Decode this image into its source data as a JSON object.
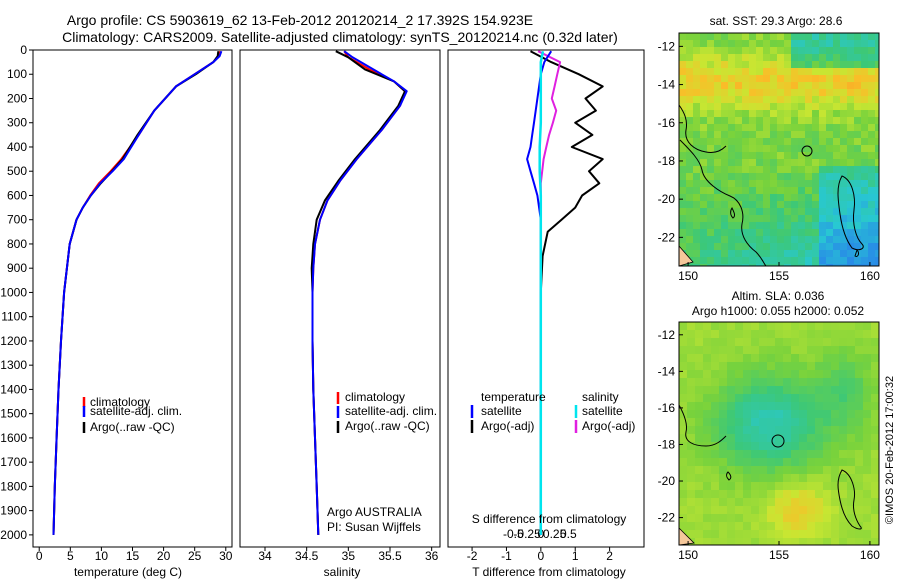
{
  "title_line1": "Argo profile: CS 5903619_62 13-Feb-2012 20120214_2 17.392S 154.923E",
  "title_line2": "Climatology: CARS2009. Satellite-adjusted climatology: synTS_20120214.nc (0.32d later)",
  "colors": {
    "climatology": "#ff0000",
    "satellite": "#0000ff",
    "argo": "#000000",
    "sal_satellite": "#00e5ee",
    "sal_argo": "#e020e0"
  },
  "chart_data": [
    {
      "type": "line",
      "name": "temperature",
      "xlabel": "temperature (deg C)",
      "ylabel": "",
      "xlim": [
        -1,
        31
      ],
      "ylim": [
        2050,
        0
      ],
      "xticks": [
        "0",
        "5",
        "10",
        "15",
        "20",
        "25",
        "30"
      ],
      "xtick_values": [
        0,
        5,
        10,
        15,
        20,
        25,
        30
      ],
      "yticks": [
        "0",
        "100",
        "200",
        "300",
        "400",
        "500",
        "600",
        "700",
        "800",
        "900",
        "1000",
        "1100",
        "1200",
        "1300",
        "1400",
        "1500",
        "1600",
        "1700",
        "1800",
        "1900",
        "2000"
      ],
      "ytick_values": [
        0,
        100,
        200,
        300,
        400,
        500,
        600,
        700,
        800,
        900,
        1000,
        1100,
        1200,
        1300,
        1400,
        1500,
        1600,
        1700,
        1800,
        1900,
        2000
      ],
      "legend": [
        "climatology",
        "satellite-adj. clim.",
        "Argo(..raw -QC)"
      ],
      "series": [
        {
          "name": "climatology",
          "x": [
            29.0,
            28.9,
            28.0,
            25.0,
            22.0,
            18.5,
            16.0,
            13.2,
            11.5,
            9.6,
            8.2,
            7.0,
            6.0,
            4.9,
            4.0,
            3.5,
            3.1,
            2.8,
            2.5,
            2.3
          ],
          "y": [
            5,
            25,
            50,
            100,
            150,
            250,
            350,
            450,
            500,
            550,
            600,
            650,
            700,
            800,
            1000,
            1200,
            1400,
            1600,
            1800,
            2000
          ]
        },
        {
          "name": "satellite",
          "x": [
            29.3,
            29.0,
            28.0,
            25.0,
            22.0,
            18.5,
            16.0,
            13.6,
            11.8,
            9.8,
            8.3,
            7.0,
            6.0,
            4.9,
            4.0,
            3.5,
            3.1,
            2.8,
            2.5,
            2.3
          ],
          "y": [
            5,
            25,
            50,
            100,
            150,
            250,
            350,
            450,
            500,
            550,
            600,
            650,
            700,
            800,
            1000,
            1200,
            1400,
            1600,
            1800,
            2000
          ]
        },
        {
          "name": "Argo",
          "x": [
            28.8,
            28.7,
            28.0,
            25.2,
            22.0,
            18.5,
            15.8,
            13.4,
            11.7,
            9.9,
            8.3,
            7.0,
            6.0,
            4.9,
            4.0,
            3.5,
            3.1,
            2.8,
            2.5,
            2.3
          ],
          "y": [
            5,
            25,
            50,
            100,
            150,
            250,
            350,
            450,
            500,
            550,
            600,
            650,
            700,
            800,
            1000,
            1200,
            1400,
            1600,
            1800,
            2000
          ]
        }
      ]
    },
    {
      "type": "line",
      "name": "salinity",
      "xlabel": "salinity",
      "xlim": [
        33.7,
        36.1
      ],
      "ylim": [
        2050,
        0
      ],
      "xticks": [
        "34",
        "34.5",
        "35",
        "35.5",
        "36"
      ],
      "xtick_values": [
        34,
        34.5,
        35,
        35.5,
        36
      ],
      "legend": [
        "climatology",
        "satellite-adj. clim.",
        "Argo(..raw -QC)"
      ],
      "annotation": [
        "Argo AUSTRALIA",
        "PI: Susan Wijffels"
      ],
      "series": [
        {
          "name": "climatology",
          "x": [
            34.95,
            35.0,
            35.25,
            35.55,
            35.68,
            35.62,
            35.4,
            35.1,
            34.9,
            34.75,
            34.66,
            34.6,
            34.58,
            34.57,
            34.57,
            34.58,
            34.6,
            34.62,
            34.63,
            34.64
          ],
          "y": [
            5,
            30,
            80,
            130,
            170,
            230,
            330,
            450,
            540,
            620,
            700,
            800,
            900,
            1000,
            1200,
            1400,
            1600,
            1800,
            1900,
            2000
          ]
        },
        {
          "name": "satellite",
          "x": [
            34.95,
            35.05,
            35.3,
            35.55,
            35.7,
            35.62,
            35.4,
            35.1,
            34.9,
            34.75,
            34.66,
            34.6,
            34.58,
            34.57,
            34.57,
            34.58,
            34.6,
            34.62,
            34.63,
            34.64
          ],
          "y": [
            5,
            30,
            80,
            130,
            170,
            230,
            330,
            450,
            540,
            620,
            700,
            800,
            900,
            1000,
            1200,
            1400,
            1600,
            1800,
            1900,
            2000
          ]
        },
        {
          "name": "Argo",
          "x": [
            34.85,
            35.0,
            35.2,
            35.55,
            35.68,
            35.6,
            35.38,
            35.08,
            34.88,
            34.72,
            34.62,
            34.58,
            34.56,
            34.57,
            34.57,
            34.58,
            34.6,
            34.62,
            34.63,
            34.64
          ],
          "y": [
            5,
            30,
            80,
            130,
            170,
            230,
            330,
            450,
            540,
            620,
            700,
            800,
            900,
            1000,
            1200,
            1400,
            1600,
            1800,
            1900,
            2000
          ]
        }
      ]
    },
    {
      "type": "line",
      "name": "difference",
      "xlabel": "T difference from climatology",
      "xlabel_top": "S difference from climatology",
      "xlim": [
        -2.7,
        3.0
      ],
      "ylim": [
        2050,
        0
      ],
      "xticks": [
        "-2",
        "-1",
        "0",
        "1",
        "2"
      ],
      "xtick_values": [
        -2,
        -1,
        0,
        1,
        2
      ],
      "sticks": [
        "-0.5",
        "-0.25",
        "0",
        "0.25",
        "0.5"
      ],
      "stick_values": [
        -0.5,
        -0.25,
        0,
        0.25,
        0.5
      ],
      "legend_temperature": [
        "temperature",
        "satellite",
        "Argo(-adj)"
      ],
      "legend_salinity": [
        "salinity",
        "satellite",
        "Argo(-adj)"
      ],
      "series": [
        {
          "name": "T satellite",
          "x": [
            0.3,
            0.1,
            0.0,
            -0.05,
            -0.1,
            -0.15,
            -0.2,
            -0.25,
            -0.3,
            -0.4,
            -0.3,
            -0.2,
            -0.1,
            0.0,
            0.0,
            0.0
          ],
          "y": [
            5,
            50,
            100,
            150,
            200,
            250,
            300,
            350,
            400,
            450,
            500,
            550,
            600,
            700,
            900,
            2000
          ]
        },
        {
          "name": "T Argo",
          "x": [
            -0.3,
            0.3,
            1.1,
            1.8,
            1.3,
            1.6,
            1.0,
            1.5,
            0.9,
            1.8,
            1.4,
            1.7,
            1.2,
            1.0,
            0.6,
            0.2,
            0.05,
            0.0,
            0.0
          ],
          "y": [
            5,
            50,
            100,
            150,
            200,
            250,
            300,
            350,
            400,
            450,
            500,
            550,
            600,
            650,
            700,
            750,
            850,
            1000,
            2000
          ]
        },
        {
          "name": "S satellite",
          "x": [
            0.04,
            0.0,
            0.0,
            0.0,
            0.0,
            -0.02,
            -0.02,
            0.0,
            0.0,
            0.0,
            0.0
          ],
          "y": [
            5,
            50,
            100,
            200,
            300,
            400,
            500,
            600,
            700,
            900,
            2000
          ]
        },
        {
          "name": "S Argo",
          "x": [
            -0.05,
            0.35,
            0.3,
            0.25,
            0.2,
            0.28,
            0.22,
            0.15,
            0.1,
            0.05,
            0.0,
            0.0
          ],
          "y": [
            5,
            50,
            100,
            150,
            200,
            250,
            300,
            350,
            400,
            450,
            550,
            2000
          ]
        }
      ]
    }
  ],
  "map_sst": {
    "title": "sat. SST: 29.3  Argo: 28.6",
    "yticks": [
      "-12",
      "-14",
      "-16",
      "-18",
      "-20",
      "-22"
    ],
    "ytick_values": [
      -12,
      -14,
      -16,
      -18,
      -20,
      -22
    ],
    "xticks": [
      "150",
      "155",
      "160"
    ],
    "xtick_values": [
      150,
      155,
      160
    ],
    "lon_range": [
      149.5,
      160.5
    ],
    "lat_range": [
      -23.5,
      -11.3
    ],
    "argo_position": [
      154.923,
      -17.392
    ]
  },
  "map_sla": {
    "title_line1": "Altim. SLA: 0.036",
    "title_line2": "Argo h1000: 0.055  h2000: 0.052",
    "yticks": [
      "-12",
      "-14",
      "-16",
      "-18",
      "-20",
      "-22"
    ],
    "ytick_values": [
      -12,
      -14,
      -16,
      -18,
      -20,
      -22
    ],
    "xticks": [
      "150",
      "155",
      "160"
    ],
    "xtick_values": [
      150,
      155,
      160
    ],
    "lon_range": [
      149.5,
      160.5
    ],
    "lat_range": [
      -23.5,
      -11.3
    ],
    "argo_position": [
      154.923,
      -17.392
    ]
  },
  "watermark": "©IMOS 20-Feb-2012 17:00:32"
}
